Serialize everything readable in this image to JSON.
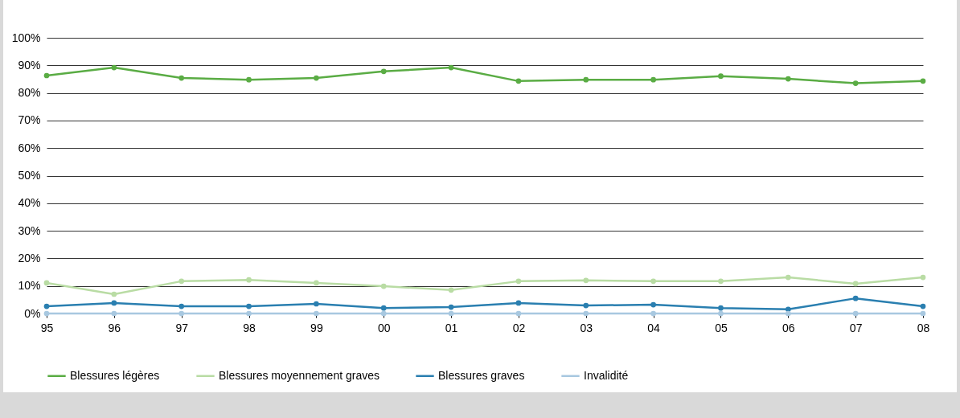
{
  "chart_data": {
    "type": "line",
    "categories": [
      "95",
      "96",
      "97",
      "98",
      "99",
      "00",
      "01",
      "02",
      "03",
      "04",
      "05",
      "06",
      "07",
      "08"
    ],
    "series": [
      {
        "name": "Blessures légères",
        "color": "#5aac44",
        "values": [
          86.3,
          89.2,
          85.4,
          84.8,
          85.4,
          87.8,
          89.2,
          84.3,
          84.8,
          84.8,
          86.1,
          85.1,
          83.5,
          84.3
        ]
      },
      {
        "name": "Blessures moyennement graves",
        "color": "#b9dca4",
        "values": [
          11.1,
          7.0,
          11.7,
          12.2,
          11.1,
          9.9,
          8.5,
          11.7,
          12.0,
          11.7,
          11.7,
          13.1,
          10.8,
          13.1
        ]
      },
      {
        "name": "Blessures graves",
        "color": "#2a7fb0",
        "values": [
          2.6,
          3.8,
          2.6,
          2.6,
          3.5,
          2.0,
          2.3,
          3.8,
          2.9,
          3.2,
          2.0,
          1.5,
          5.5,
          2.6
        ]
      },
      {
        "name": "Invalidité",
        "color": "#a8c8e0",
        "values": [
          0,
          0,
          0,
          0,
          0,
          0,
          0,
          0,
          0,
          0,
          0,
          0,
          0,
          0
        ]
      }
    ],
    "ylim": [
      0,
      100
    ],
    "yticks": [
      {
        "value": 0,
        "label": "0%"
      },
      {
        "value": 10,
        "label": "10%"
      },
      {
        "value": 20,
        "label": "20%"
      },
      {
        "value": 30,
        "label": "30%"
      },
      {
        "value": 40,
        "label": "40%"
      },
      {
        "value": 50,
        "label": "50%"
      },
      {
        "value": 60,
        "label": "60%"
      },
      {
        "value": 70,
        "label": "70%"
      },
      {
        "value": 80,
        "label": "80%"
      },
      {
        "value": 90,
        "label": "90%"
      },
      {
        "value": 100,
        "label": "100%"
      }
    ],
    "grid": "y",
    "legend": "bottom",
    "marker": "circle",
    "line_style": "solid"
  }
}
